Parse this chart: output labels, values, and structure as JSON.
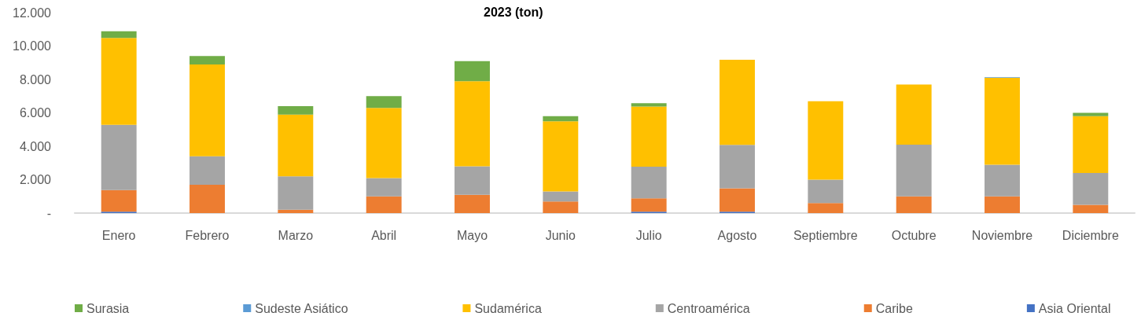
{
  "chart_data": {
    "type": "bar",
    "stacked": true,
    "title": "2023 (ton)",
    "categories": [
      "Enero",
      "Febrero",
      "Marzo",
      "Abril",
      "Mayo",
      "Junio",
      "Julio",
      "Agosto",
      "Septiembre",
      "Octubre",
      "Noviembre",
      "Diciembre"
    ],
    "series": [
      {
        "name": "Asia Oriental",
        "color": "#4472c4",
        "values": [
          80,
          null,
          null,
          null,
          null,
          null,
          80,
          80,
          null,
          null,
          null,
          null
        ]
      },
      {
        "name": "Caribe",
        "color": "#ed7d31",
        "values": [
          1300,
          1700,
          200,
          1000,
          1100,
          700,
          800,
          1400,
          600,
          1000,
          1000,
          500
        ]
      },
      {
        "name": "Centroamérica",
        "color": "#a5a5a5",
        "values": [
          3900,
          1700,
          2000,
          1100,
          1700,
          600,
          1900,
          2600,
          1400,
          3100,
          1900,
          1900
        ]
      },
      {
        "name": "Sudamérica",
        "color": "#ffc000",
        "values": [
          5200,
          5500,
          3700,
          4200,
          5100,
          4200,
          3600,
          5100,
          4700,
          3600,
          5200,
          3400
        ]
      },
      {
        "name": "Sudeste Asiático",
        "color": "#5b9bd5",
        "values": [
          null,
          null,
          null,
          null,
          null,
          null,
          null,
          null,
          null,
          null,
          30,
          null
        ]
      },
      {
        "name": "Surasia",
        "color": "#70ad47",
        "values": [
          400,
          500,
          500,
          700,
          1200,
          300,
          200,
          null,
          null,
          null,
          null,
          200
        ]
      }
    ],
    "ylim": [
      0,
      12000
    ],
    "yticks": [
      {
        "value": 0,
        "label": "-"
      },
      {
        "value": 2000,
        "label": "2.000"
      },
      {
        "value": 4000,
        "label": "4.000"
      },
      {
        "value": 6000,
        "label": "6.000"
      },
      {
        "value": 8000,
        "label": "8.000"
      },
      {
        "value": 10000,
        "label": "10.000"
      },
      {
        "value": 12000,
        "label": "12.000"
      }
    ],
    "grid": false,
    "legend": "bottom"
  }
}
